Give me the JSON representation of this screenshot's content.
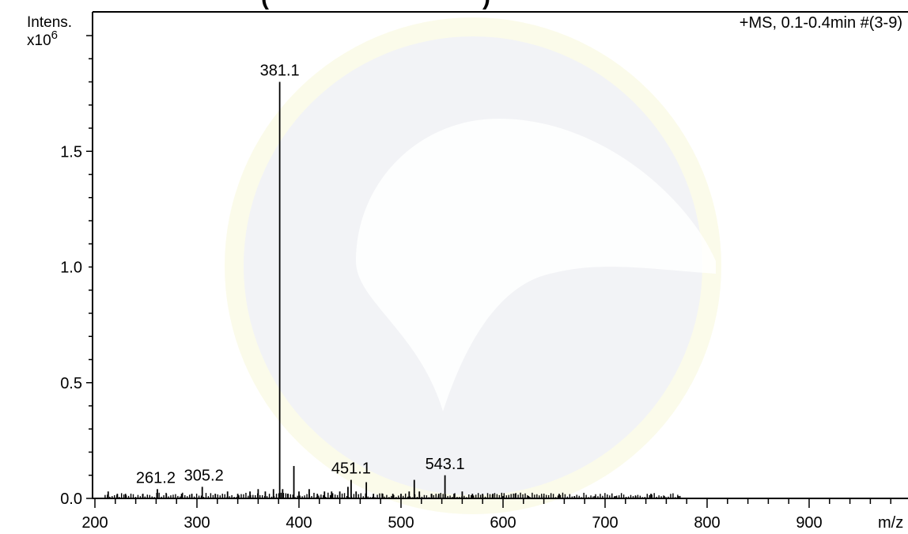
{
  "chart_data": {
    "type": "bar",
    "title": "+MS, 0.1-0.4min #(3-9)",
    "xlabel": "m/z",
    "ylabel": "Intens.",
    "y_multiplier": "x10",
    "y_multiplier_exp": "6",
    "xlim": [
      200,
      1000
    ],
    "ylim": [
      0,
      2.0
    ],
    "x_ticks": [
      "200",
      "300",
      "400",
      "500",
      "600",
      "700",
      "800",
      "900"
    ],
    "y_ticks": [
      "0.0",
      "0.5",
      "1.0",
      "1.5"
    ],
    "labeled_peaks": [
      {
        "label": "381.1",
        "mz": 381.1,
        "intensity": 1.8
      },
      {
        "label": "261.2",
        "mz": 261.2,
        "intensity": 0.04
      },
      {
        "label": "305.2",
        "mz": 305.2,
        "intensity": 0.05
      },
      {
        "label": "451.1",
        "mz": 451.1,
        "intensity": 0.08
      },
      {
        "label": "543.1",
        "mz": 543.1,
        "intensity": 0.1
      }
    ],
    "peaks": [
      {
        "mz": 213,
        "intensity": 0.03
      },
      {
        "mz": 222,
        "intensity": 0.02
      },
      {
        "mz": 230,
        "intensity": 0.02
      },
      {
        "mz": 247,
        "intensity": 0.02
      },
      {
        "mz": 261.2,
        "intensity": 0.04
      },
      {
        "mz": 270,
        "intensity": 0.02
      },
      {
        "mz": 285,
        "intensity": 0.02
      },
      {
        "mz": 295,
        "intensity": 0.02
      },
      {
        "mz": 305.2,
        "intensity": 0.05
      },
      {
        "mz": 318,
        "intensity": 0.02
      },
      {
        "mz": 330,
        "intensity": 0.03
      },
      {
        "mz": 340,
        "intensity": 0.02
      },
      {
        "mz": 352,
        "intensity": 0.03
      },
      {
        "mz": 360,
        "intensity": 0.04
      },
      {
        "mz": 367,
        "intensity": 0.03
      },
      {
        "mz": 375,
        "intensity": 0.04
      },
      {
        "mz": 381.1,
        "intensity": 1.8
      },
      {
        "mz": 384,
        "intensity": 0.04
      },
      {
        "mz": 389,
        "intensity": 0.02
      },
      {
        "mz": 395,
        "intensity": 0.14
      },
      {
        "mz": 400,
        "intensity": 0.03
      },
      {
        "mz": 410,
        "intensity": 0.04
      },
      {
        "mz": 418,
        "intensity": 0.02
      },
      {
        "mz": 425,
        "intensity": 0.03
      },
      {
        "mz": 432,
        "intensity": 0.03
      },
      {
        "mz": 440,
        "intensity": 0.03
      },
      {
        "mz": 448,
        "intensity": 0.05
      },
      {
        "mz": 451.1,
        "intensity": 0.08
      },
      {
        "mz": 456,
        "intensity": 0.03
      },
      {
        "mz": 466,
        "intensity": 0.07
      },
      {
        "mz": 473,
        "intensity": 0.02
      },
      {
        "mz": 482,
        "intensity": 0.02
      },
      {
        "mz": 492,
        "intensity": 0.02
      },
      {
        "mz": 500,
        "intensity": 0.02
      },
      {
        "mz": 508,
        "intensity": 0.03
      },
      {
        "mz": 513,
        "intensity": 0.08
      },
      {
        "mz": 518,
        "intensity": 0.03
      },
      {
        "mz": 530,
        "intensity": 0.02
      },
      {
        "mz": 537,
        "intensity": 0.02
      },
      {
        "mz": 543.1,
        "intensity": 0.1
      },
      {
        "mz": 552,
        "intensity": 0.02
      },
      {
        "mz": 560,
        "intensity": 0.03
      },
      {
        "mz": 570,
        "intensity": 0.02
      },
      {
        "mz": 580,
        "intensity": 0.02
      },
      {
        "mz": 590,
        "intensity": 0.02
      },
      {
        "mz": 600,
        "intensity": 0.01
      },
      {
        "mz": 612,
        "intensity": 0.02
      },
      {
        "mz": 625,
        "intensity": 0.01
      },
      {
        "mz": 640,
        "intensity": 0.01
      },
      {
        "mz": 655,
        "intensity": 0.02
      },
      {
        "mz": 670,
        "intensity": 0.01
      },
      {
        "mz": 690,
        "intensity": 0.01
      },
      {
        "mz": 710,
        "intensity": 0.01
      },
      {
        "mz": 730,
        "intensity": 0.01
      },
      {
        "mz": 745,
        "intensity": 0.02
      },
      {
        "mz": 758,
        "intensity": 0.01
      },
      {
        "mz": 772,
        "intensity": 0.01
      }
    ],
    "grid": false,
    "legend": "none"
  },
  "colors": {
    "line": "#000000",
    "background": "#ffffff",
    "watermark_fill": "#f3f4f7",
    "watermark_edge": "#fbfbe8"
  },
  "watermark": {
    "icon": "circular-logo-watermark-icon"
  }
}
